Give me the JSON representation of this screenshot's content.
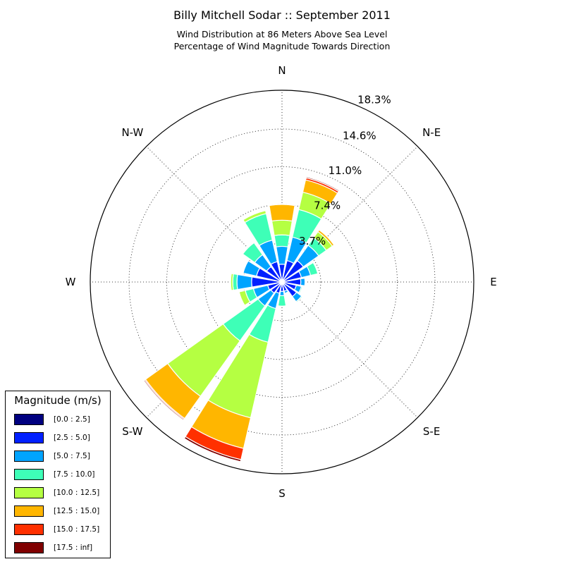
{
  "chart_data": {
    "type": "windrose",
    "title": "Billy Mitchell Sodar :: September 2011",
    "subtitle_1": "Wind Distribution at 86 Meters Above Sea Level",
    "subtitle_2": "Percentage of Wind Magnitude Towards Direction",
    "legend_title": "Magnitude (m/s)",
    "legend_placement": "lower-left",
    "grid": true,
    "r_max": 18.3,
    "radial_ticks": [
      "3.7%",
      "7.4%",
      "11.0%",
      "14.6%",
      "18.3%"
    ],
    "radial_tick_values": [
      3.7,
      7.4,
      11.0,
      14.6,
      18.3
    ],
    "direction_labels": [
      "N",
      "N-E",
      "E",
      "S-E",
      "S",
      "S-W",
      "W",
      "N-W"
    ],
    "direction_angles": [
      0,
      45,
      90,
      135,
      180,
      225,
      270,
      315
    ],
    "bins": [
      {
        "label": "[0.0 : 2.5]",
        "color": "#000080"
      },
      {
        "label": "[2.5 : 5.0]",
        "color": "#0020ff"
      },
      {
        "label": "[5.0 : 7.5]",
        "color": "#00a4ff"
      },
      {
        "label": "[7.5 : 10.0]",
        "color": "#3effb7"
      },
      {
        "label": "[10.0 : 12.5]",
        "color": "#b5ff42"
      },
      {
        "label": "[12.5 : 15.0]",
        "color": "#ffb600"
      },
      {
        "label": "[15.0 : 17.5]",
        "color": "#ff3000"
      },
      {
        "label": "[17.5 : inf]",
        "color": "#800000"
      }
    ],
    "sectors": [
      {
        "dir": 0,
        "values": [
          0.2,
          1.5,
          1.7,
          1.1,
          1.4,
          1.5,
          0.0,
          0.0
        ]
      },
      {
        "dir": 22.5,
        "values": [
          0.2,
          1.9,
          2.3,
          2.7,
          1.7,
          1.2,
          0.2,
          0.1
        ]
      },
      {
        "dir": 45,
        "values": [
          0.2,
          2.3,
          1.8,
          0.9,
          0.7,
          0.2,
          0.0,
          0.0
        ]
      },
      {
        "dir": 67.5,
        "values": [
          0.2,
          1.7,
          0.9,
          0.7,
          0.0,
          0.0,
          0.0,
          0.0
        ]
      },
      {
        "dir": 90,
        "values": [
          0.2,
          1.6,
          0.4,
          0.0,
          0.0,
          0.0,
          0.0,
          0.0
        ]
      },
      {
        "dir": 112.5,
        "values": [
          0.2,
          1.2,
          0.5,
          0.1,
          0.0,
          0.0,
          0.0,
          0.0
        ]
      },
      {
        "dir": 135,
        "values": [
          0.2,
          1.5,
          0.6,
          0.1,
          0.0,
          0.0,
          0.0,
          0.0
        ]
      },
      {
        "dir": 157.5,
        "values": [
          0.2,
          0.7,
          0.2,
          0.0,
          0.0,
          0.0,
          0.0,
          0.0
        ]
      },
      {
        "dir": 180,
        "values": [
          0.2,
          0.7,
          0.4,
          1.0,
          0.0,
          0.0,
          0.0,
          0.0
        ]
      },
      {
        "dir": 202.5,
        "values": [
          0.2,
          0.9,
          1.5,
          3.3,
          7.4,
          3.0,
          1.1,
          0.2
        ]
      },
      {
        "dir": 225,
        "values": [
          0.2,
          1.1,
          1.5,
          4.1,
          6.5,
          2.6,
          0.1,
          0.1
        ]
      },
      {
        "dir": 247.5,
        "values": [
          0.2,
          1.2,
          1.4,
          0.8,
          0.6,
          0.0,
          0.0,
          0.0
        ]
      },
      {
        "dir": 270,
        "values": [
          0.2,
          2.7,
          1.4,
          0.4,
          0.2,
          0.0,
          0.0,
          0.0
        ]
      },
      {
        "dir": 292.5,
        "values": [
          0.2,
          2.3,
          1.3,
          0.0,
          0.0,
          0.0,
          0.0,
          0.0
        ]
      },
      {
        "dir": 315,
        "values": [
          0.2,
          1.6,
          1.4,
          1.4,
          0.0,
          0.0,
          0.0,
          0.0
        ]
      },
      {
        "dir": 337.5,
        "values": [
          0.2,
          1.8,
          2.1,
          2.6,
          0.3,
          0.0,
          0.0,
          0.0
        ]
      }
    ]
  }
}
